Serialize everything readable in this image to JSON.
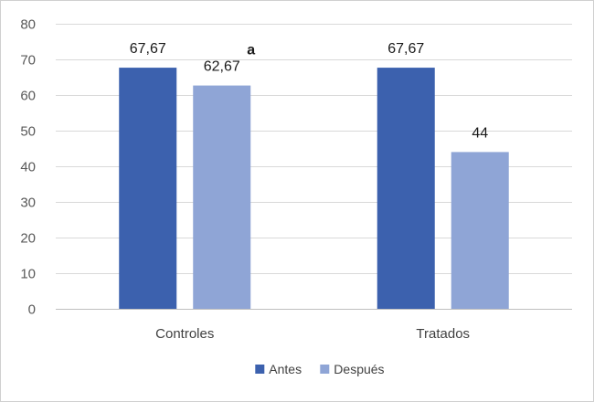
{
  "chart_data": {
    "type": "bar",
    "categories": [
      "Controles",
      "Tratados"
    ],
    "series": [
      {
        "name": "Antes",
        "values": [
          67.67,
          67.67
        ],
        "labels": [
          "67,67",
          "67,67"
        ],
        "color": "#3c61ae"
      },
      {
        "name": "Después",
        "values": [
          62.67,
          44
        ],
        "labels": [
          "62,67",
          "44"
        ],
        "color": "#8fa5d6"
      }
    ],
    "annotations": [
      {
        "text": "a",
        "category": "Controles",
        "series": "Después"
      }
    ],
    "title": "",
    "xlabel": "",
    "ylabel": "",
    "ylim": [
      0,
      80
    ],
    "yticks": [
      0,
      10,
      20,
      30,
      40,
      50,
      60,
      70,
      80
    ],
    "grid": true,
    "legend_position": "bottom"
  }
}
